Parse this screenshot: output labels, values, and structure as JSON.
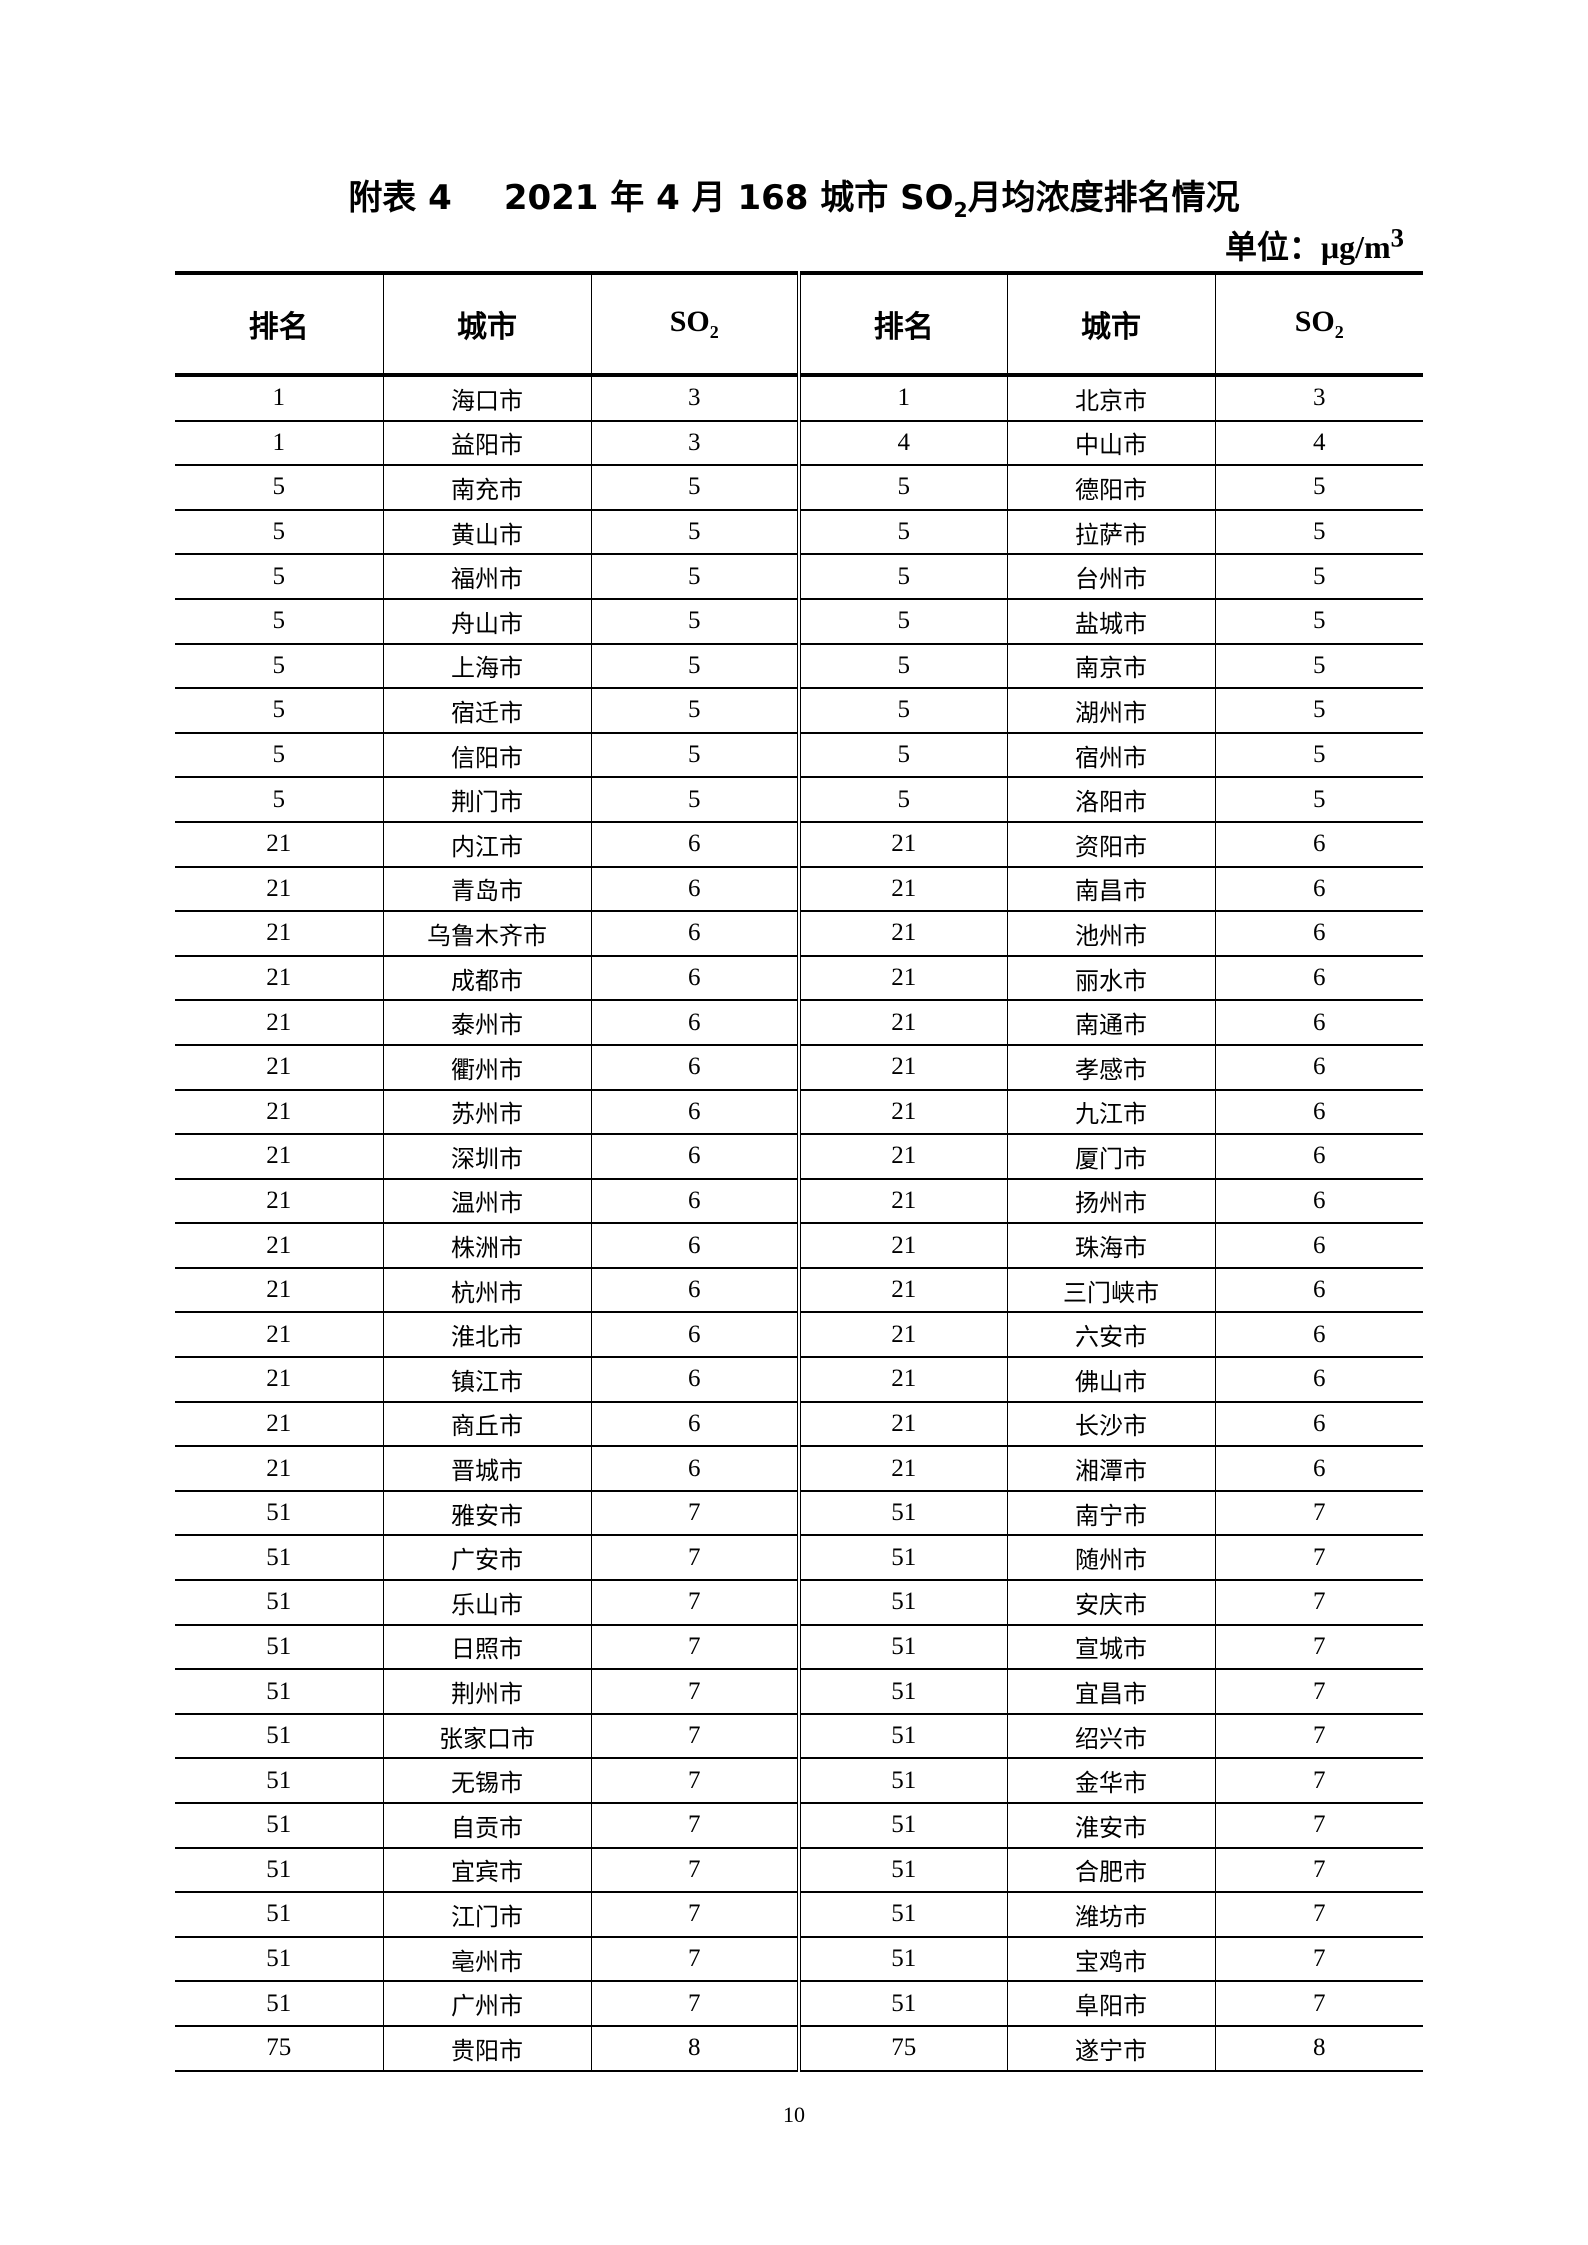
{
  "title": {
    "prefix": "附表 4",
    "main": "2021 年 4 月 168 城市 SO",
    "sub": "2",
    "suffix": "月均浓度排名情况"
  },
  "unit": {
    "label": "单位：",
    "value": "μg/m",
    "sup": "3"
  },
  "table": {
    "headers": [
      "排名",
      "城市",
      "SO",
      "排名",
      "城市",
      "SO"
    ],
    "so_sub": "2",
    "rows": [
      [
        "1",
        "海口市",
        "3",
        "1",
        "北京市",
        "3"
      ],
      [
        "1",
        "益阳市",
        "3",
        "4",
        "中山市",
        "4"
      ],
      [
        "5",
        "南充市",
        "5",
        "5",
        "德阳市",
        "5"
      ],
      [
        "5",
        "黄山市",
        "5",
        "5",
        "拉萨市",
        "5"
      ],
      [
        "5",
        "福州市",
        "5",
        "5",
        "台州市",
        "5"
      ],
      [
        "5",
        "舟山市",
        "5",
        "5",
        "盐城市",
        "5"
      ],
      [
        "5",
        "上海市",
        "5",
        "5",
        "南京市",
        "5"
      ],
      [
        "5",
        "宿迁市",
        "5",
        "5",
        "湖州市",
        "5"
      ],
      [
        "5",
        "信阳市",
        "5",
        "5",
        "宿州市",
        "5"
      ],
      [
        "5",
        "荆门市",
        "5",
        "5",
        "洛阳市",
        "5"
      ],
      [
        "21",
        "内江市",
        "6",
        "21",
        "资阳市",
        "6"
      ],
      [
        "21",
        "青岛市",
        "6",
        "21",
        "南昌市",
        "6"
      ],
      [
        "21",
        "乌鲁木齐市",
        "6",
        "21",
        "池州市",
        "6"
      ],
      [
        "21",
        "成都市",
        "6",
        "21",
        "丽水市",
        "6"
      ],
      [
        "21",
        "泰州市",
        "6",
        "21",
        "南通市",
        "6"
      ],
      [
        "21",
        "衢州市",
        "6",
        "21",
        "孝感市",
        "6"
      ],
      [
        "21",
        "苏州市",
        "6",
        "21",
        "九江市",
        "6"
      ],
      [
        "21",
        "深圳市",
        "6",
        "21",
        "厦门市",
        "6"
      ],
      [
        "21",
        "温州市",
        "6",
        "21",
        "扬州市",
        "6"
      ],
      [
        "21",
        "株洲市",
        "6",
        "21",
        "珠海市",
        "6"
      ],
      [
        "21",
        "杭州市",
        "6",
        "21",
        "三门峡市",
        "6"
      ],
      [
        "21",
        "淮北市",
        "6",
        "21",
        "六安市",
        "6"
      ],
      [
        "21",
        "镇江市",
        "6",
        "21",
        "佛山市",
        "6"
      ],
      [
        "21",
        "商丘市",
        "6",
        "21",
        "长沙市",
        "6"
      ],
      [
        "21",
        "晋城市",
        "6",
        "21",
        "湘潭市",
        "6"
      ],
      [
        "51",
        "雅安市",
        "7",
        "51",
        "南宁市",
        "7"
      ],
      [
        "51",
        "广安市",
        "7",
        "51",
        "随州市",
        "7"
      ],
      [
        "51",
        "乐山市",
        "7",
        "51",
        "安庆市",
        "7"
      ],
      [
        "51",
        "日照市",
        "7",
        "51",
        "宣城市",
        "7"
      ],
      [
        "51",
        "荆州市",
        "7",
        "51",
        "宜昌市",
        "7"
      ],
      [
        "51",
        "张家口市",
        "7",
        "51",
        "绍兴市",
        "7"
      ],
      [
        "51",
        "无锡市",
        "7",
        "51",
        "金华市",
        "7"
      ],
      [
        "51",
        "自贡市",
        "7",
        "51",
        "淮安市",
        "7"
      ],
      [
        "51",
        "宜宾市",
        "7",
        "51",
        "合肥市",
        "7"
      ],
      [
        "51",
        "江门市",
        "7",
        "51",
        "潍坊市",
        "7"
      ],
      [
        "51",
        "亳州市",
        "7",
        "51",
        "宝鸡市",
        "7"
      ],
      [
        "51",
        "广州市",
        "7",
        "51",
        "阜阳市",
        "7"
      ],
      [
        "75",
        "贵阳市",
        "8",
        "75",
        "遂宁市",
        "8"
      ]
    ]
  },
  "page_number": "10"
}
